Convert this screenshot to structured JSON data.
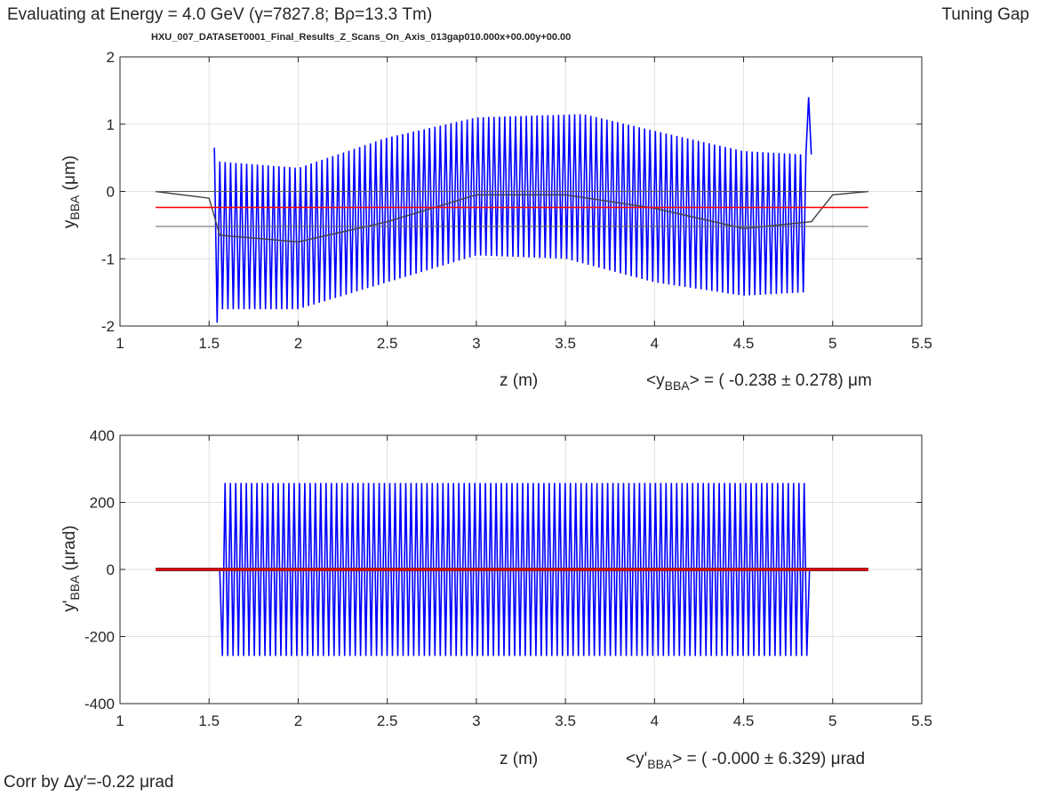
{
  "header": {
    "left_prefix": "Evaluating at Energy =  4.0 GeV (",
    "gamma_symbol": "γ",
    "gamma_value": "=7827.8; B",
    "rho_symbol": "ρ",
    "rigidity_value": "=13.3 Tm)",
    "right": "Tuning Gap",
    "dataset": "HXU_007_DATASET0001_Final_Results_Z_Scans_On_Axis_013gap010.000x+00.00y+00.00"
  },
  "footer": {
    "correction": "Corr by Δy'=-0.22 μrad"
  },
  "colors": {
    "signal": "#0000ff",
    "mean": "#ff0000",
    "trace": "#404040",
    "band": "#606060",
    "grid": "#e0e0e0"
  },
  "chart_data": [
    {
      "type": "line",
      "xlabel": "z (m)",
      "ylabel_main": "y",
      "ylabel_sub": "BBA",
      "ylabel_unit": "(μm)",
      "xlim": [
        1,
        5.5
      ],
      "ylim": [
        -2,
        2
      ],
      "xticks": [
        "1",
        "1.5",
        "2",
        "2.5",
        "3",
        "3.5",
        "4",
        "4.5",
        "5",
        "5.5"
      ],
      "yticks": [
        "2",
        "1",
        "0",
        "-1",
        "-2"
      ],
      "grid": true,
      "stat_prefix": "<y",
      "stat_sub": "BBA",
      "stat_suffix": "> = ( -0.238 ± 0.278) μm",
      "oscillation": {
        "z_start": 1.53,
        "z_end": 4.88,
        "periods": 111,
        "upper_envelope": [
          [
            1.53,
            0.45
          ],
          [
            2.0,
            0.35
          ],
          [
            2.5,
            0.8
          ],
          [
            3.0,
            1.1
          ],
          [
            3.6,
            1.15
          ],
          [
            4.0,
            0.9
          ],
          [
            4.5,
            0.6
          ],
          [
            4.84,
            0.55
          ]
        ],
        "lower_envelope": [
          [
            1.53,
            -1.75
          ],
          [
            2.0,
            -1.75
          ],
          [
            2.5,
            -1.35
          ],
          [
            3.0,
            -0.95
          ],
          [
            3.5,
            -1.0
          ],
          [
            4.0,
            -1.35
          ],
          [
            4.5,
            -1.55
          ],
          [
            4.84,
            -1.5
          ]
        ],
        "spikes": [
          [
            1.56,
            -1.95
          ],
          [
            1.54,
            0.65
          ],
          [
            4.84,
            1.4
          ]
        ]
      },
      "trace": [
        [
          1.2,
          0.0
        ],
        [
          1.5,
          -0.1
        ],
        [
          1.56,
          -0.65
        ],
        [
          2.0,
          -0.75
        ],
        [
          2.5,
          -0.45
        ],
        [
          3.0,
          -0.05
        ],
        [
          3.5,
          -0.05
        ],
        [
          4.0,
          -0.25
        ],
        [
          4.5,
          -0.55
        ],
        [
          4.88,
          -0.45
        ],
        [
          5.0,
          -0.05
        ],
        [
          5.2,
          0.0
        ]
      ],
      "mean": -0.238,
      "band": [
        -0.52,
        0.0
      ],
      "line_range": [
        1.2,
        5.2
      ]
    },
    {
      "type": "line",
      "xlabel": "z (m)",
      "ylabel_main": "y'",
      "ylabel_sub": "BBA",
      "ylabel_unit": "(μrad)",
      "xlim": [
        1,
        5.5
      ],
      "ylim": [
        -400,
        400
      ],
      "xticks": [
        "1",
        "1.5",
        "2",
        "2.5",
        "3",
        "3.5",
        "4",
        "4.5",
        "5",
        "5.5"
      ],
      "yticks": [
        "400",
        "200",
        "0",
        "-200",
        "-400"
      ],
      "grid": true,
      "stat_prefix": "<y'",
      "stat_sub": "BBA",
      "stat_suffix": "> = ( -0.000 ± 6.329) μrad",
      "oscillation": {
        "z_start": 1.56,
        "z_end": 4.87,
        "periods": 111,
        "amplitude": 258
      },
      "mean": 0.0,
      "line_range": [
        1.2,
        5.2
      ]
    }
  ]
}
